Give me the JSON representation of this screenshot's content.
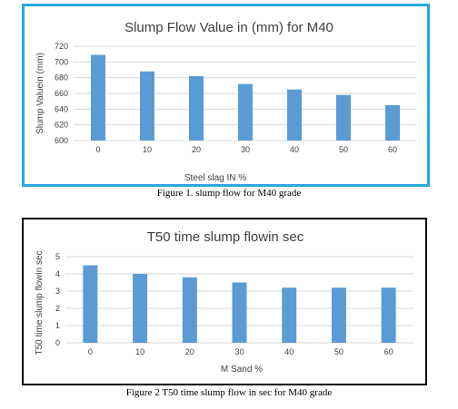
{
  "figures": [
    {
      "caption": "Figure 1. slump flow for M40 grade"
    },
    {
      "caption": "Figure 2 T50 time slump flow in sec for M40 grade"
    }
  ],
  "chart_data": [
    {
      "type": "bar",
      "title": "Slump Flow  Value in (mm) for M40",
      "xlabel": "Steel slag  IN %",
      "ylabel": "Slump Valuein (mm)",
      "categories": [
        "0",
        "10",
        "20",
        "30",
        "40",
        "50",
        "60"
      ],
      "values": [
        709,
        688,
        682,
        672,
        665,
        658,
        645
      ],
      "ylim": [
        600,
        720
      ],
      "yticks": [
        "600",
        "620",
        "640",
        "660",
        "680",
        "700",
        "720"
      ],
      "grid": true,
      "bar_color": "#5B9BD5"
    },
    {
      "type": "bar",
      "title": "T50 time slump flowin sec",
      "xlabel": "M Sand  %",
      "ylabel": "T50 time slump flowin sec",
      "categories": [
        "0",
        "10",
        "20",
        "30",
        "40",
        "50",
        "60"
      ],
      "values": [
        4.5,
        4.0,
        3.8,
        3.5,
        3.2,
        3.2,
        3.2
      ],
      "ylim": [
        0,
        5
      ],
      "yticks": [
        "0",
        "1",
        "2",
        "3",
        "4",
        "5"
      ],
      "grid": true,
      "bar_color": "#5B9BD5"
    }
  ]
}
